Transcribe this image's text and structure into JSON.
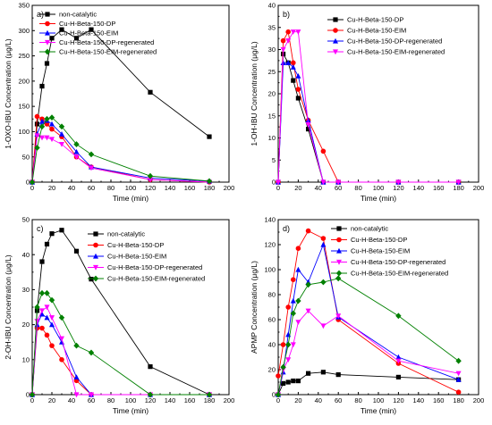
{
  "chart_data": [
    {
      "type": "line",
      "panel_label": "a)",
      "xlabel": "Time (min)",
      "ylabel": "1-OXO-IBU Concentration (μg/L)",
      "xlim": [
        0,
        200
      ],
      "ylim": [
        0,
        350
      ],
      "xticks": [
        0,
        20,
        40,
        60,
        80,
        100,
        120,
        140,
        160,
        180,
        200
      ],
      "yticks": [
        0,
        50,
        100,
        150,
        200,
        250,
        300,
        350
      ],
      "legend_position": "top-left",
      "series": [
        {
          "name": "non-catalytic",
          "color": "#000000",
          "marker": "square",
          "x": [
            0,
            5,
            10,
            15,
            20,
            30,
            45,
            60,
            120,
            180
          ],
          "y": [
            0,
            115,
            190,
            235,
            285,
            302,
            285,
            302,
            178,
            90
          ]
        },
        {
          "name": "Cu-H-Beta-150-DP",
          "color": "#ff0000",
          "marker": "circle",
          "x": [
            0,
            5,
            10,
            15,
            20,
            30,
            45,
            60,
            120,
            180
          ],
          "y": [
            0,
            130,
            125,
            115,
            105,
            90,
            50,
            30,
            5,
            0
          ]
        },
        {
          "name": "Cu-H-Beta-150-EIM",
          "color": "#0000ff",
          "marker": "triangle-up",
          "x": [
            0,
            5,
            10,
            15,
            20,
            30,
            45,
            60,
            120,
            180
          ],
          "y": [
            0,
            95,
            120,
            122,
            115,
            95,
            60,
            30,
            8,
            2
          ]
        },
        {
          "name": "Cu-H-Beta-150-DP-regenerated",
          "color": "#ff00ff",
          "marker": "triangle-down",
          "x": [
            0,
            5,
            10,
            15,
            20,
            30,
            45,
            60,
            120,
            180
          ],
          "y": [
            0,
            92,
            88,
            88,
            85,
            75,
            50,
            28,
            5,
            0
          ]
        },
        {
          "name": "Cu-H-Beta-150-EIM-regenerated",
          "color": "#008000",
          "marker": "diamond",
          "x": [
            0,
            5,
            10,
            15,
            20,
            30,
            45,
            60,
            120,
            180
          ],
          "y": [
            0,
            68,
            110,
            125,
            128,
            110,
            75,
            55,
            12,
            2
          ]
        }
      ]
    },
    {
      "type": "line",
      "panel_label": "b)",
      "xlabel": "Time (min)",
      "ylabel": "1-OH-IBU Concentration (μg/L)",
      "xlim": [
        0,
        200
      ],
      "ylim": [
        0,
        40
      ],
      "xticks": [
        0,
        20,
        40,
        60,
        80,
        100,
        120,
        140,
        160,
        180,
        200
      ],
      "yticks": [
        0,
        5,
        10,
        15,
        20,
        25,
        30,
        35,
        40
      ],
      "legend_position": "top-right",
      "series": [
        {
          "name": "Cu-H-Beta-150-DP",
          "color": "#000000",
          "marker": "square",
          "x": [
            0,
            5,
            10,
            15,
            20,
            30,
            45,
            60,
            120,
            180
          ],
          "y": [
            0,
            29,
            27,
            23,
            19,
            12,
            0,
            0,
            0,
            0
          ]
        },
        {
          "name": "Cu-H-Beta-150-EIM",
          "color": "#ff0000",
          "marker": "circle",
          "x": [
            0,
            5,
            10,
            15,
            20,
            30,
            45,
            60,
            120,
            180
          ],
          "y": [
            0,
            32,
            34,
            27,
            21,
            14,
            7,
            0,
            0,
            0
          ]
        },
        {
          "name": "Cu-H-Beta-150-DP-regenerated",
          "color": "#0000ff",
          "marker": "triangle-up",
          "x": [
            0,
            5,
            10,
            15,
            20,
            30,
            45,
            60,
            120,
            180
          ],
          "y": [
            0,
            27,
            27,
            26,
            24,
            14,
            0,
            0,
            0,
            0
          ]
        },
        {
          "name": "Cu-H-Beta-150-EIM-regenerated",
          "color": "#ff00ff",
          "marker": "triangle-down",
          "x": [
            0,
            5,
            10,
            15,
            20,
            30,
            45,
            60,
            120,
            180
          ],
          "y": [
            0,
            30,
            32,
            34,
            34,
            13,
            0,
            0,
            0,
            0
          ]
        }
      ]
    },
    {
      "type": "line",
      "panel_label": "c)",
      "xlabel": "Time (min)",
      "ylabel": "2-OH-IBU Concentration (μg/L)",
      "xlim": [
        0,
        200
      ],
      "ylim": [
        0,
        50
      ],
      "xticks": [
        0,
        20,
        40,
        60,
        80,
        100,
        120,
        140,
        160,
        180,
        200
      ],
      "yticks": [
        0,
        10,
        20,
        30,
        40,
        50
      ],
      "legend_position": "top-right",
      "series": [
        {
          "name": "non-catalytic",
          "color": "#000000",
          "marker": "square",
          "x": [
            0,
            5,
            10,
            15,
            20,
            30,
            45,
            60,
            120,
            180
          ],
          "y": [
            0,
            24,
            38,
            43,
            46,
            47,
            41,
            33,
            8,
            0
          ]
        },
        {
          "name": "Cu-H-Beta-150-DP",
          "color": "#ff0000",
          "marker": "circle",
          "x": [
            0,
            5,
            10,
            15,
            20,
            30,
            45,
            60,
            120,
            180
          ],
          "y": [
            0,
            19,
            19,
            17,
            14,
            10,
            4,
            0,
            0,
            0
          ]
        },
        {
          "name": "Cu-H-Beta-150-EIM",
          "color": "#0000ff",
          "marker": "triangle-up",
          "x": [
            0,
            5,
            10,
            15,
            20,
            30,
            45,
            60,
            120,
            180
          ],
          "y": [
            0,
            20,
            23,
            22,
            20,
            15,
            5,
            0,
            0,
            0
          ]
        },
        {
          "name": "Cu-H-Beta-150-DP-regenerated",
          "color": "#ff00ff",
          "marker": "triangle-down",
          "x": [
            0,
            5,
            10,
            15,
            20,
            30,
            45,
            60,
            120,
            180
          ],
          "y": [
            0,
            21,
            24,
            25,
            22,
            16,
            0,
            0,
            0,
            0
          ]
        },
        {
          "name": "Cu-H-Beta-150-EIM-regenerated",
          "color": "#008000",
          "marker": "diamond",
          "x": [
            0,
            5,
            10,
            15,
            20,
            30,
            45,
            60,
            120,
            180
          ],
          "y": [
            0,
            25,
            29,
            29,
            27,
            22,
            14,
            12,
            0,
            0
          ]
        }
      ]
    },
    {
      "type": "line",
      "panel_label": "d)",
      "xlabel": "Time (min)",
      "ylabel": "APMP Concentration (μg/L)",
      "xlim": [
        0,
        200
      ],
      "ylim": [
        0,
        140
      ],
      "xticks": [
        0,
        20,
        40,
        60,
        80,
        100,
        120,
        140,
        160,
        180,
        200
      ],
      "yticks": [
        0,
        20,
        40,
        60,
        80,
        100,
        120,
        140
      ],
      "legend_position": "top-left",
      "series": [
        {
          "name": "non-catalytic",
          "color": "#000000",
          "marker": "square",
          "x": [
            0,
            5,
            10,
            15,
            20,
            30,
            45,
            60,
            120,
            180
          ],
          "y": [
            0,
            9,
            10,
            11,
            11,
            17,
            18,
            16,
            14,
            12
          ]
        },
        {
          "name": "Cu-H-Beta-150-DP",
          "color": "#ff0000",
          "marker": "circle",
          "x": [
            0,
            5,
            10,
            15,
            20,
            30,
            45,
            60,
            120,
            180
          ],
          "y": [
            15,
            40,
            70,
            92,
            117,
            131,
            125,
            60,
            25,
            2
          ]
        },
        {
          "name": "Cu-H-Beta-150-EIM",
          "color": "#0000ff",
          "marker": "triangle-up",
          "x": [
            0,
            5,
            10,
            15,
            20,
            30,
            45,
            60,
            120,
            180
          ],
          "y": [
            0,
            18,
            48,
            75,
            100,
            90,
            120,
            62,
            30,
            12
          ]
        },
        {
          "name": "Cu-H-Beta-150-DP-regenerated",
          "color": "#ff00ff",
          "marker": "triangle-down",
          "x": [
            0,
            5,
            10,
            15,
            20,
            30,
            45,
            60,
            120,
            180
          ],
          "y": [
            0,
            20,
            28,
            40,
            58,
            67,
            55,
            63,
            27,
            17
          ]
        },
        {
          "name": "Cu-H-Beta-150-EIM-regenerated",
          "color": "#008000",
          "marker": "diamond",
          "x": [
            0,
            5,
            10,
            15,
            20,
            30,
            45,
            60,
            120,
            180
          ],
          "y": [
            0,
            22,
            40,
            65,
            75,
            88,
            90,
            93,
            63,
            27
          ]
        }
      ]
    }
  ]
}
